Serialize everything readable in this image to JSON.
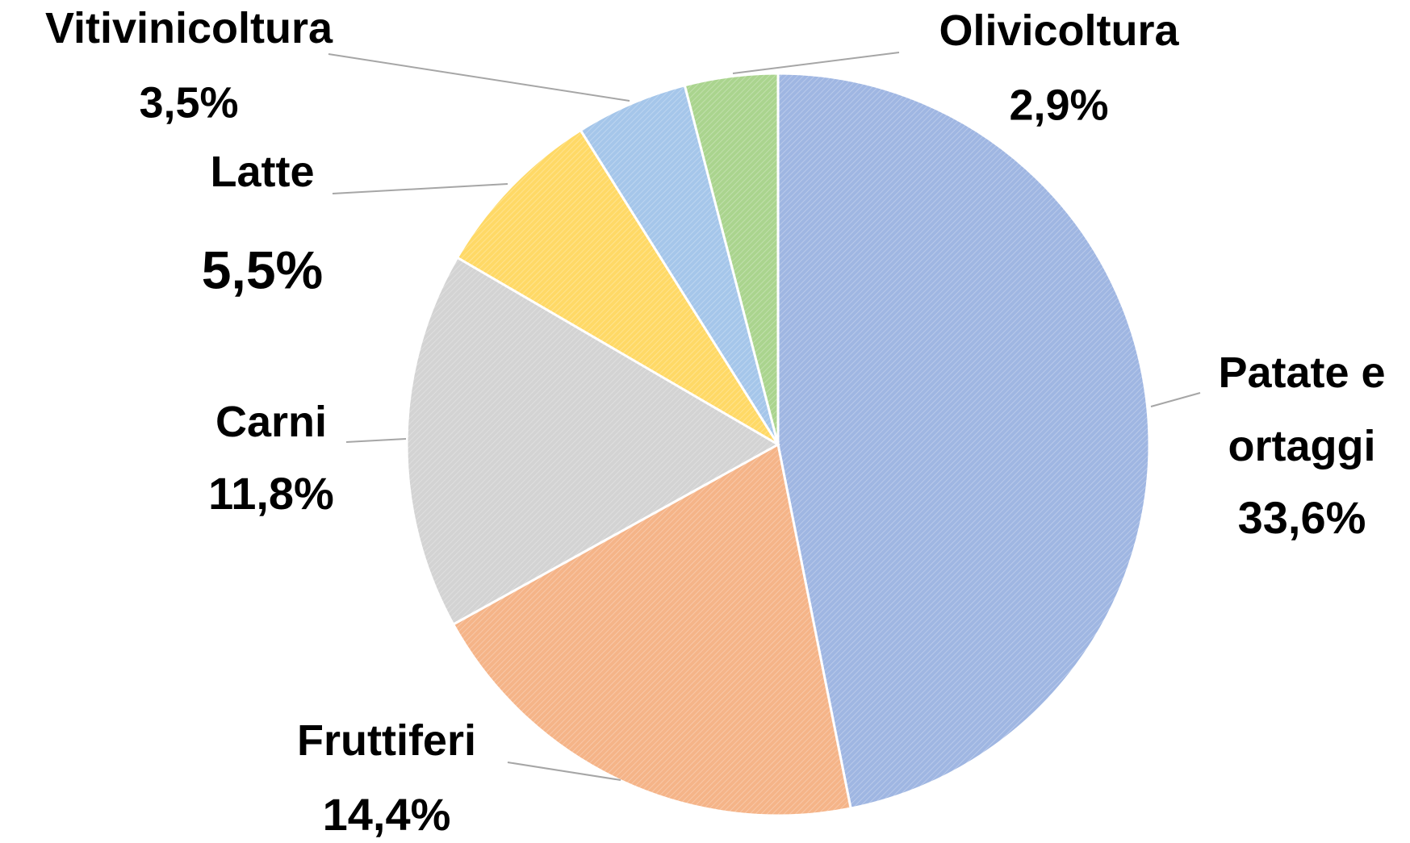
{
  "chart_data": {
    "type": "pie",
    "categories": [
      "Patate e ortaggi",
      "Fruttiferi",
      "Carni",
      "Latte",
      "Vitivinicoltura",
      "Olivicoltura"
    ],
    "values": [
      33.6,
      14.4,
      11.8,
      5.5,
      3.5,
      2.9
    ],
    "value_labels": [
      "33,6%",
      "14,4%",
      "11,8%",
      "5,5%",
      "3,5%",
      "2,9%"
    ],
    "colors": [
      "#9fb6e2",
      "#f5b488",
      "#d3d3d3",
      "#ffd966",
      "#a5c6ea",
      "#aad48e"
    ]
  }
}
